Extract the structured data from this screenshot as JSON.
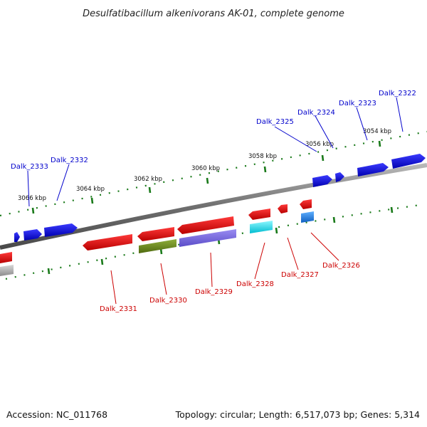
{
  "title": "Desulfatibacillum alkenivorans AK-01, complete genome",
  "footer": {
    "accession": "Accession: NC_011768",
    "topology": "Topology: circular; Length: 6,517,073 bp; Genes: 5,314"
  },
  "colors": {
    "forward_label": "#0000cc",
    "reverse_label": "#cc0000",
    "backbone": "#808080",
    "tick": "#1a7a1a",
    "forward_gene": "#0000ee",
    "reverse_gene": "#ee0000",
    "rrna_olive": "#6b8e23",
    "slate": "#7b68ee",
    "cyan": "#00e5ee",
    "skyblue": "#1e90ff",
    "grey": "#b0b0b0"
  },
  "ruler_labels": [
    "3066 kbp",
    "3064 kbp",
    "3062 kbp",
    "3060 kbp",
    "3058 kbp",
    "3056 kbp",
    "3054 kbp"
  ],
  "forward_labels": [
    "Dalk_2333",
    "Dalk_2332",
    "Dalk_2325",
    "Dalk_2324",
    "Dalk_2323",
    "Dalk_2322"
  ],
  "reverse_labels": [
    "Dalk_2331",
    "Dalk_2330",
    "Dalk_2329",
    "Dalk_2328",
    "Dalk_2327",
    "Dalk_2326"
  ]
}
